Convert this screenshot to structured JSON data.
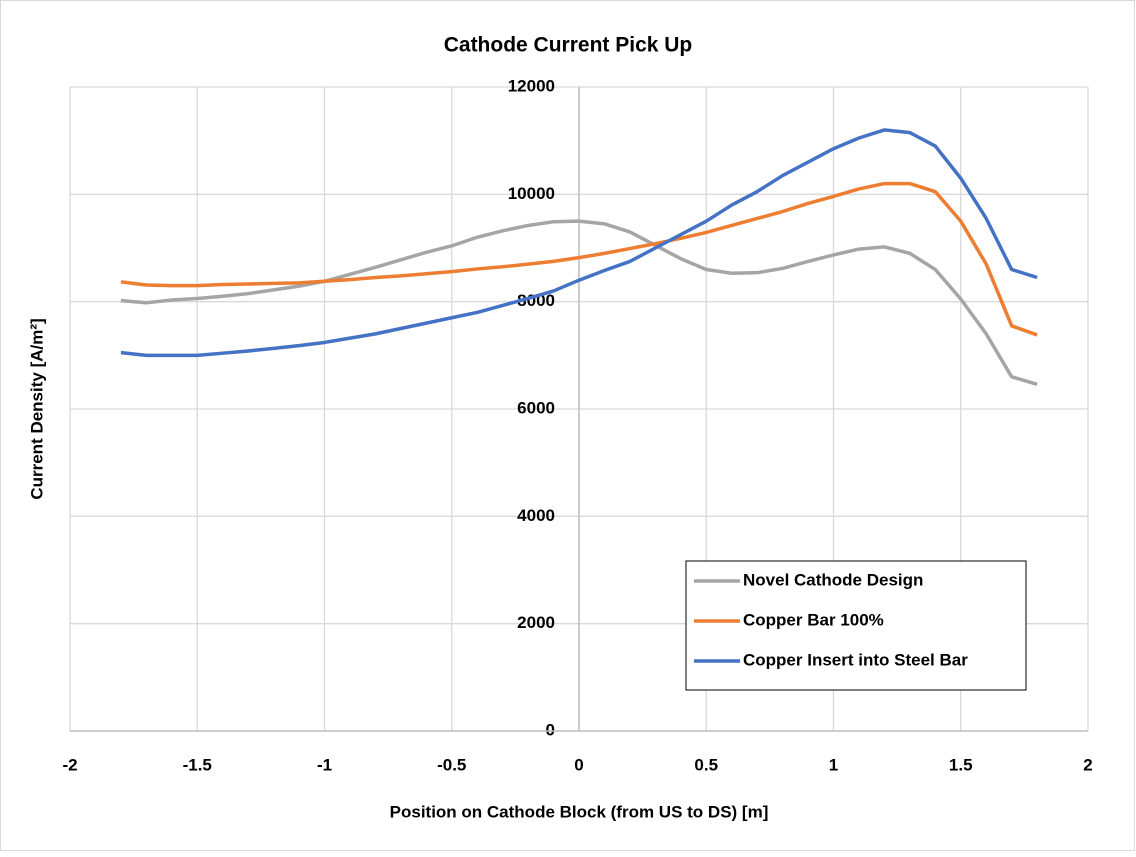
{
  "chart_data": {
    "type": "line",
    "title": "Cathode Current Pick Up",
    "xlabel": "Position on Cathode Block (from US to DS) [m]",
    "ylabel": "Current Density [A/m²]",
    "x": [
      -1.8,
      -1.7,
      -1.6,
      -1.5,
      -1.4,
      -1.3,
      -1.2,
      -1.1,
      -1.0,
      -0.9,
      -0.8,
      -0.7,
      -0.6,
      -0.5,
      -0.4,
      -0.3,
      -0.2,
      -0.1,
      0,
      0.1,
      0.2,
      0.3,
      0.4,
      0.5,
      0.6,
      0.7,
      0.8,
      0.9,
      1.0,
      1.1,
      1.2,
      1.3,
      1.4,
      1.5,
      1.6,
      1.7,
      1.8
    ],
    "series": [
      {
        "name": "Novel Cathode Design",
        "color": "#a5a5a5",
        "values": [
          8020,
          7980,
          8030,
          8060,
          8100,
          8150,
          8220,
          8290,
          8380,
          8510,
          8640,
          8780,
          8920,
          9040,
          9200,
          9320,
          9420,
          9490,
          9500,
          9450,
          9300,
          9050,
          8800,
          8600,
          8530,
          8540,
          8620,
          8750,
          8870,
          8980,
          9020,
          8900,
          8600,
          8050,
          7400,
          6600,
          6460
        ]
      },
      {
        "name": "Copper Bar 100%",
        "color": "#ed7d31",
        "values": [
          8370,
          8310,
          8300,
          8300,
          8320,
          8330,
          8340,
          8350,
          8380,
          8410,
          8450,
          8480,
          8520,
          8560,
          8610,
          8650,
          8700,
          8750,
          8820,
          8900,
          8990,
          9080,
          9180,
          9290,
          9420,
          9550,
          9680,
          9830,
          9960,
          10100,
          10200,
          10200,
          10050,
          9500,
          8700,
          7550,
          7380
        ]
      },
      {
        "name": "Copper Insert into Steel Bar",
        "color": "#4472c4",
        "values": [
          7050,
          7000,
          7000,
          7000,
          7040,
          7080,
          7130,
          7180,
          7240,
          7320,
          7400,
          7500,
          7600,
          7700,
          7800,
          7930,
          8060,
          8200,
          8400,
          8580,
          8750,
          9000,
          9250,
          9500,
          9800,
          10050,
          10350,
          10600,
          10850,
          11050,
          11200,
          11150,
          10900,
          10300,
          9550,
          8600,
          8450
        ]
      }
    ],
    "xlim": [
      -2,
      2
    ],
    "xticks": [
      -2,
      -1.5,
      -1,
      -0.5,
      0,
      0.5,
      1,
      1.5,
      2
    ],
    "ylim": [
      0,
      12000
    ],
    "yticks": [
      0,
      2000,
      4000,
      6000,
      8000,
      10000,
      12000
    ],
    "grid": true,
    "legend": "lower right"
  }
}
